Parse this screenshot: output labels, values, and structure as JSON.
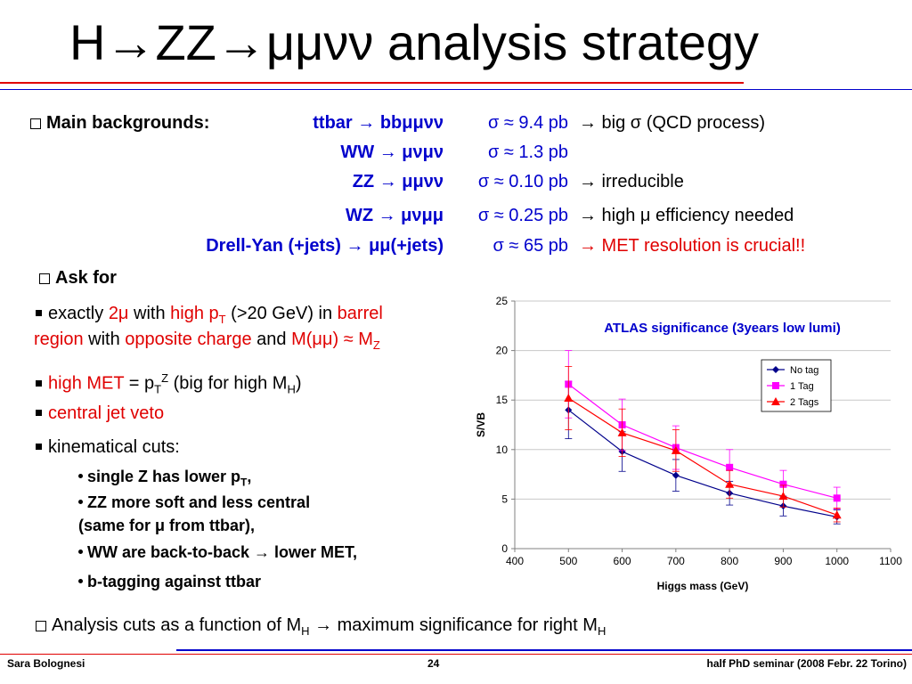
{
  "title": "H→ZZ→μμνν analysis strategy",
  "colors": {
    "red_rule": "#E00000",
    "blue_text": "#0000CC",
    "red_text": "#E00000"
  },
  "backgrounds": {
    "label": "Main backgrounds:",
    "rows": [
      {
        "process": "ttbar",
        "arrow": " → ",
        "decay": "bbμμνν",
        "sigma": "σ ≈ 9.4 pb",
        "note": "→ big σ (QCD process)",
        "note_color": "black"
      },
      {
        "process": "WW",
        "arrow": " → ",
        "decay": "μνμν",
        "sigma": "σ ≈ 1.3 pb",
        "note": "",
        "note_color": "black"
      },
      {
        "process": "ZZ",
        "arrow": " → ",
        "decay": "μμνν",
        "sigma": "σ ≈ 0.10 pb",
        "note": "→ irreducible",
        "note_color": "black"
      },
      {
        "process": "WZ",
        "arrow": " → ",
        "decay": "μνμμ",
        "sigma": "σ ≈ 0.25 pb",
        "note": "→ high μ efficiency needed",
        "note_color": "black"
      },
      {
        "process": "Drell-Yan (+jets)",
        "arrow": " → ",
        "decay": "μμ(+jets)",
        "sigma": "σ ≈ 65 pb",
        "note": "→ MET resolution is crucial!!",
        "note_color": "red"
      }
    ]
  },
  "ask_for": {
    "label": "Ask for",
    "items": {
      "exactly": {
        "a": "exactly ",
        "b": "2μ",
        "c": " with ",
        "d": "high p",
        "d_sub": "T",
        "e": " (>20 GeV) in ",
        "f": "barrel",
        "g": "region",
        "h": " with ",
        "i": "opposite charge",
        "j": " and ",
        "k": "M(μμ) ≈ M",
        "k_sub": "Z"
      },
      "met": {
        "a": "high MET",
        "b": " = p",
        "b_sub": "T",
        "b_sup": "Z",
        "c": " (big for high M",
        "c_sub": "H",
        "d": ")"
      },
      "veto": "central jet veto",
      "kin": "kinematical cuts:",
      "sub": {
        "single_z": {
          "text": "single Z has lower p",
          "sub": "T",
          "tail": ","
        },
        "zz_soft": "ZZ more soft and less central",
        "same_for": "(same for μ from ttbar),",
        "ww": "WW are back-to-back → lower MET,",
        "btag": "b-tagging against ttbar"
      }
    }
  },
  "analysis_cuts": {
    "text": "Analysis cuts as a function of M",
    "sub": "H",
    "tail": " → maximum significance for right M",
    "tail_sub": "H"
  },
  "footer": {
    "author": "Sara Bolognesi",
    "page": "24",
    "event": "half PhD seminar (2008 Febr. 22 Torino)"
  },
  "chart_data": {
    "type": "line",
    "title": "ATLAS significance (3years low lumi)",
    "xlabel": "Higgs mass (GeV)",
    "ylabel": "S/VB",
    "xlim": [
      400,
      1100
    ],
    "ylim": [
      0,
      25
    ],
    "xticks": [
      400,
      500,
      600,
      700,
      800,
      900,
      1000,
      1100
    ],
    "yticks": [
      0,
      5,
      10,
      15,
      20,
      25
    ],
    "grid": "horizontal",
    "legend_position": "top-right",
    "series": [
      {
        "name": "No tag",
        "color": "#00008B",
        "marker": "diamond",
        "x": [
          500,
          600,
          700,
          800,
          900,
          1000
        ],
        "y": [
          14.0,
          9.8,
          7.4,
          5.6,
          4.3,
          3.2
        ],
        "err": [
          2.9,
          2.0,
          1.6,
          1.2,
          1.0,
          0.7
        ]
      },
      {
        "name": "1 Tag",
        "color": "#FF00FF",
        "marker": "square",
        "x": [
          500,
          600,
          700,
          800,
          900,
          1000
        ],
        "y": [
          16.6,
          12.5,
          10.2,
          8.2,
          6.5,
          5.1
        ],
        "err": [
          3.4,
          2.6,
          2.2,
          1.8,
          1.4,
          1.1
        ]
      },
      {
        "name": "2 Tags",
        "color": "#FF0000",
        "marker": "triangle",
        "x": [
          500,
          600,
          700,
          800,
          900,
          1000
        ],
        "y": [
          15.2,
          11.7,
          9.9,
          6.5,
          5.3,
          3.4
        ],
        "err": [
          3.2,
          2.4,
          2.1,
          1.4,
          1.1,
          0.7
        ]
      }
    ]
  }
}
